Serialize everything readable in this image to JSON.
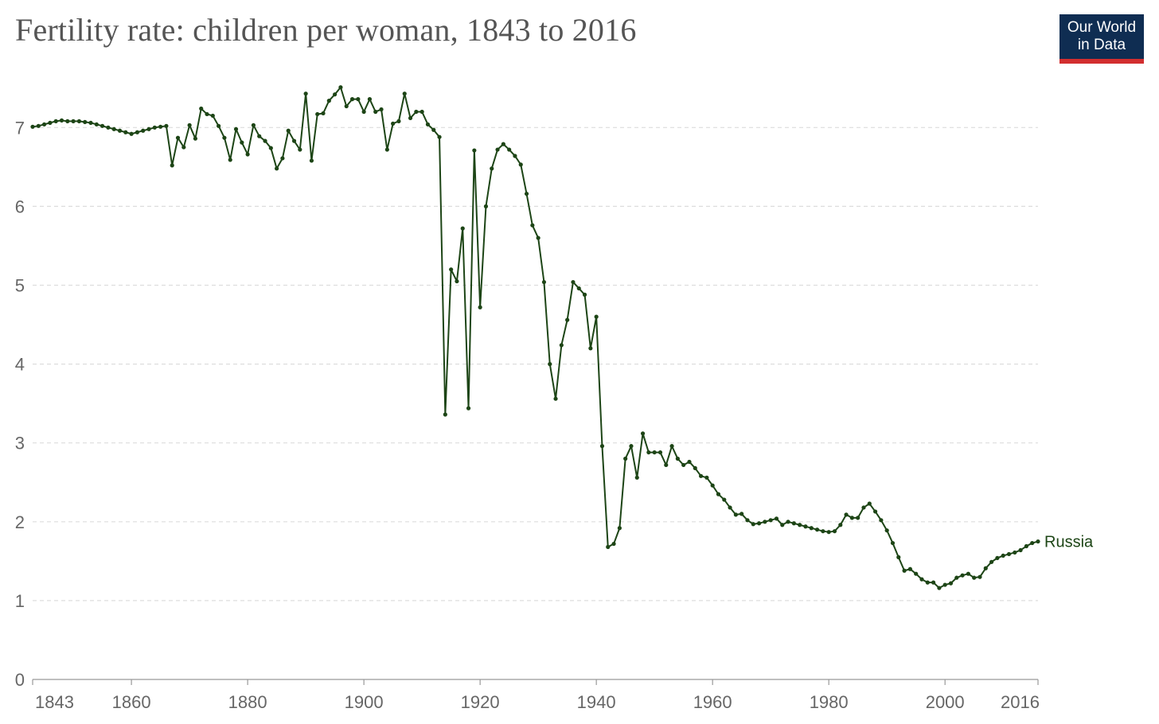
{
  "header": {
    "title": "Fertility rate: children per woman, 1843 to 2016"
  },
  "logo": {
    "line1": "Our World",
    "line2": "in Data"
  },
  "colors": {
    "series": "#1d4516",
    "grid": "#dddddd",
    "axis": "#999999",
    "logo_bg": "#0f2d52",
    "logo_accent": "#d22e2f"
  },
  "chart_data": {
    "type": "line",
    "title": "Fertility rate: children per woman, 1843 to 2016",
    "xlabel": "",
    "ylabel": "",
    "xlim": [
      1843,
      2016
    ],
    "ylim": [
      0,
      7.6
    ],
    "x_ticks": [
      1843,
      1860,
      1880,
      1900,
      1920,
      1940,
      1960,
      1980,
      2000,
      2016
    ],
    "y_ticks": [
      0,
      1,
      2,
      3,
      4,
      5,
      6,
      7
    ],
    "grid": "horizontal dashed",
    "legend": "end-of-line label",
    "series": [
      {
        "name": "Russia",
        "x": [
          1843,
          1844,
          1845,
          1846,
          1847,
          1848,
          1849,
          1850,
          1851,
          1852,
          1853,
          1854,
          1855,
          1856,
          1857,
          1858,
          1859,
          1860,
          1861,
          1862,
          1863,
          1864,
          1865,
          1866,
          1867,
          1868,
          1869,
          1870,
          1871,
          1872,
          1873,
          1874,
          1875,
          1876,
          1877,
          1878,
          1879,
          1880,
          1881,
          1882,
          1883,
          1884,
          1885,
          1886,
          1887,
          1888,
          1889,
          1890,
          1891,
          1892,
          1893,
          1894,
          1895,
          1896,
          1897,
          1898,
          1899,
          1900,
          1901,
          1902,
          1903,
          1904,
          1905,
          1906,
          1907,
          1908,
          1909,
          1910,
          1911,
          1912,
          1913,
          1914,
          1915,
          1916,
          1917,
          1918,
          1919,
          1920,
          1921,
          1922,
          1923,
          1924,
          1925,
          1926,
          1927,
          1928,
          1929,
          1930,
          1931,
          1932,
          1933,
          1934,
          1935,
          1936,
          1937,
          1938,
          1939,
          1940,
          1941,
          1942,
          1943,
          1944,
          1945,
          1946,
          1947,
          1948,
          1949,
          1950,
          1951,
          1952,
          1953,
          1954,
          1955,
          1956,
          1957,
          1958,
          1959,
          1960,
          1961,
          1962,
          1963,
          1964,
          1965,
          1966,
          1967,
          1968,
          1969,
          1970,
          1971,
          1972,
          1973,
          1974,
          1975,
          1976,
          1977,
          1978,
          1979,
          1980,
          1981,
          1982,
          1983,
          1984,
          1985,
          1986,
          1987,
          1988,
          1989,
          1990,
          1991,
          1992,
          1993,
          1994,
          1995,
          1996,
          1997,
          1998,
          1999,
          2000,
          2001,
          2002,
          2003,
          2004,
          2005,
          2006,
          2007,
          2008,
          2009,
          2010,
          2011,
          2012,
          2013,
          2014,
          2015,
          2016
        ],
        "y": [
          7.01,
          7.02,
          7.04,
          7.06,
          7.08,
          7.09,
          7.08,
          7.08,
          7.08,
          7.07,
          7.06,
          7.04,
          7.02,
          7.0,
          6.98,
          6.96,
          6.94,
          6.92,
          6.94,
          6.96,
          6.98,
          7.0,
          7.01,
          7.02,
          6.52,
          6.87,
          6.75,
          7.03,
          6.86,
          7.24,
          7.17,
          7.15,
          7.02,
          6.87,
          6.59,
          6.98,
          6.81,
          6.66,
          7.03,
          6.89,
          6.83,
          6.74,
          6.48,
          6.61,
          6.96,
          6.83,
          6.72,
          7.43,
          6.58,
          7.17,
          7.18,
          7.34,
          7.42,
          7.51,
          7.27,
          7.36,
          7.36,
          7.2,
          7.36,
          7.2,
          7.23,
          6.72,
          7.05,
          7.08,
          7.43,
          7.12,
          7.2,
          7.2,
          7.04,
          6.97,
          6.88,
          3.36,
          5.2,
          5.05,
          5.72,
          3.44,
          6.71,
          4.72,
          6.0,
          6.48,
          6.72,
          6.79,
          6.72,
          6.64,
          6.53,
          6.16,
          5.76,
          5.6,
          5.04,
          4.0,
          3.56,
          4.24,
          4.56,
          5.04,
          4.96,
          4.88,
          4.2,
          4.6,
          2.96,
          1.68,
          1.72,
          1.92,
          2.8,
          2.96,
          2.56,
          3.12,
          2.88,
          2.88,
          2.88,
          2.72,
          2.96,
          2.8,
          2.72,
          2.76,
          2.68,
          2.58,
          2.56,
          2.46,
          2.35,
          2.28,
          2.18,
          2.09,
          2.1,
          2.02,
          1.97,
          1.98,
          2.0,
          2.02,
          2.04,
          1.96,
          2.0,
          1.98,
          1.96,
          1.94,
          1.92,
          1.9,
          1.88,
          1.87,
          1.88,
          1.96,
          2.09,
          2.05,
          2.05,
          2.18,
          2.23,
          2.13,
          2.02,
          1.89,
          1.73,
          1.55,
          1.38,
          1.4,
          1.34,
          1.27,
          1.23,
          1.23,
          1.16,
          1.2,
          1.22,
          1.29,
          1.32,
          1.34,
          1.29,
          1.3,
          1.41,
          1.49,
          1.54,
          1.57,
          1.59,
          1.61,
          1.64,
          1.69,
          1.73,
          1.75
        ]
      }
    ]
  }
}
